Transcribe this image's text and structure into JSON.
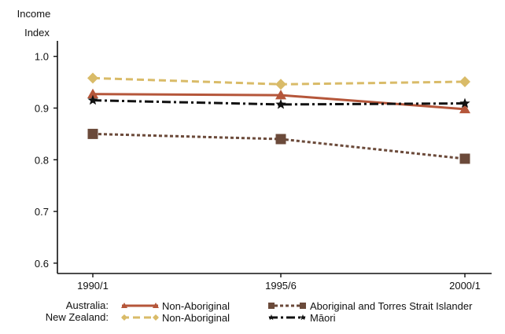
{
  "chart_data": {
    "type": "line",
    "ylabel": "Income\nIndex",
    "categories": [
      "1990/1",
      "1995/6",
      "2000/1"
    ],
    "y_ticks": [
      "0.6",
      "0.7",
      "0.8",
      "0.9",
      "1.0"
    ],
    "ylim": [
      0.58,
      1.03
    ],
    "grid": false,
    "legend_position": "bottom",
    "series": [
      {
        "name": "Non-Aboriginal",
        "group": "Australia:",
        "values": [
          0.927,
          0.925,
          0.898
        ],
        "color": "#b5563a",
        "dash": "solid",
        "marker": "triangle"
      },
      {
        "name": "Aboriginal and Torres Strait Islander",
        "group": "Australia:",
        "values": [
          0.85,
          0.84,
          0.802
        ],
        "color": "#6b4a3a",
        "dash": "dotted",
        "marker": "square"
      },
      {
        "name": "Non-Aboriginal",
        "group": "New Zealand:",
        "values": [
          0.958,
          0.946,
          0.951
        ],
        "color": "#d9bb68",
        "dash": "dashed",
        "marker": "diamond"
      },
      {
        "name": "Māori",
        "group": "New Zealand:",
        "values": [
          0.915,
          0.907,
          0.909
        ],
        "color": "#111111",
        "dash": "dashdot",
        "marker": "star"
      }
    ],
    "legend": {
      "group_labels": [
        "Australia:",
        "New Zealand:"
      ]
    }
  }
}
